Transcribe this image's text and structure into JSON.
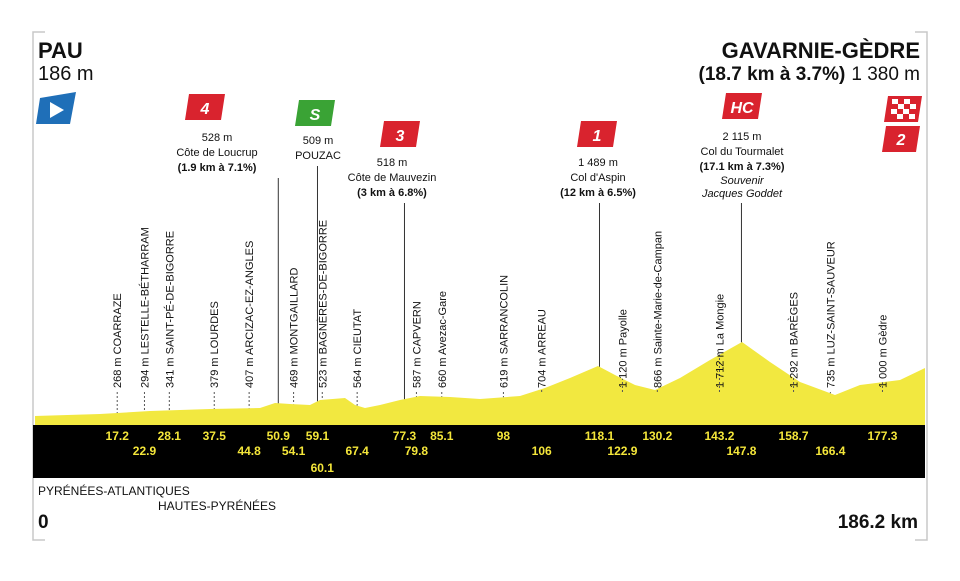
{
  "header": {
    "start": {
      "name": "PAU",
      "altitude": "186 m"
    },
    "finish": {
      "name": "GAVARNIE-GÈDRE",
      "climb": "(18.7 km à 3.7%)",
      "altitude": "1 380 m"
    }
  },
  "climbs": [
    {
      "badge": "4",
      "altitude": "528 m",
      "name": "Côte de Loucrup",
      "stats": "(1.9 km à 7.1%)",
      "km": "50.9"
    },
    {
      "badge": "S",
      "altitude": "509 m",
      "name": "POUZAC",
      "km": "59.1"
    },
    {
      "badge": "3",
      "altitude": "518 m",
      "name": "Côte de Mauvezin",
      "stats": "(3 km à 6.8%)",
      "km": "77.3"
    },
    {
      "badge": "1",
      "altitude": "1 489 m",
      "name": "Col d'Aspin",
      "stats": "(12 km à 6.5%)",
      "km": "118.1"
    },
    {
      "badge": "HC",
      "altitude": "2 115 m",
      "name": "Col du Tourmalet",
      "stats": "(17.1 km à 7.3%)",
      "note": [
        "Souvenir",
        "Jacques Goddet"
      ],
      "km": "147.8"
    }
  ],
  "finish_badge": "2",
  "waypoints": [
    {
      "km": "17.2",
      "label": "268 m COARRAZE"
    },
    {
      "km": "22.9",
      "label": "294 m LESTELLE-BÉTHARRAM"
    },
    {
      "km": "28.1",
      "label": "341 m SAINT-PÉ-DE-BIGORRE"
    },
    {
      "km": "37.5",
      "label": "379 m LOURDES"
    },
    {
      "km": "44.8",
      "label": "407 m ARCIZAC-EZ-ANGLES"
    },
    {
      "km": "54.1",
      "label": "469 m MONTGAILLARD"
    },
    {
      "km": "60.1",
      "label": "523 m BAGNÈRES-DE-BIGORRE"
    },
    {
      "km": "67.4",
      "label": "564 m CIEUTAT"
    },
    {
      "km": "79.8",
      "label": "587 m CAPVERN"
    },
    {
      "km": "85.1",
      "label": "660 m Avezac-Gare"
    },
    {
      "km": "98",
      "label": "619 m SARRANCOLIN"
    },
    {
      "km": "106",
      "label": "704 m ARREAU"
    },
    {
      "km": "122.9",
      "label": "1 120 m Payolle"
    },
    {
      "km": "130.2",
      "label": "866 m Sainte-Marie-de-Campan"
    },
    {
      "km": "143.2",
      "label": "1 712 m La Mongie"
    },
    {
      "km": "158.7",
      "label": "1 292 m BARÈGES"
    },
    {
      "km": "166.4",
      "label": "735 m LUZ-SAINT-SAUVEUR"
    },
    {
      "km": "177.3",
      "label": "1 000 m Gèdre"
    }
  ],
  "footer": {
    "departments": [
      "PYRÉNÉES-ATLANTIQUES",
      "HAUTES-PYRÉNÉES"
    ],
    "start_distance": "0",
    "end_distance": "186.2 km"
  }
}
